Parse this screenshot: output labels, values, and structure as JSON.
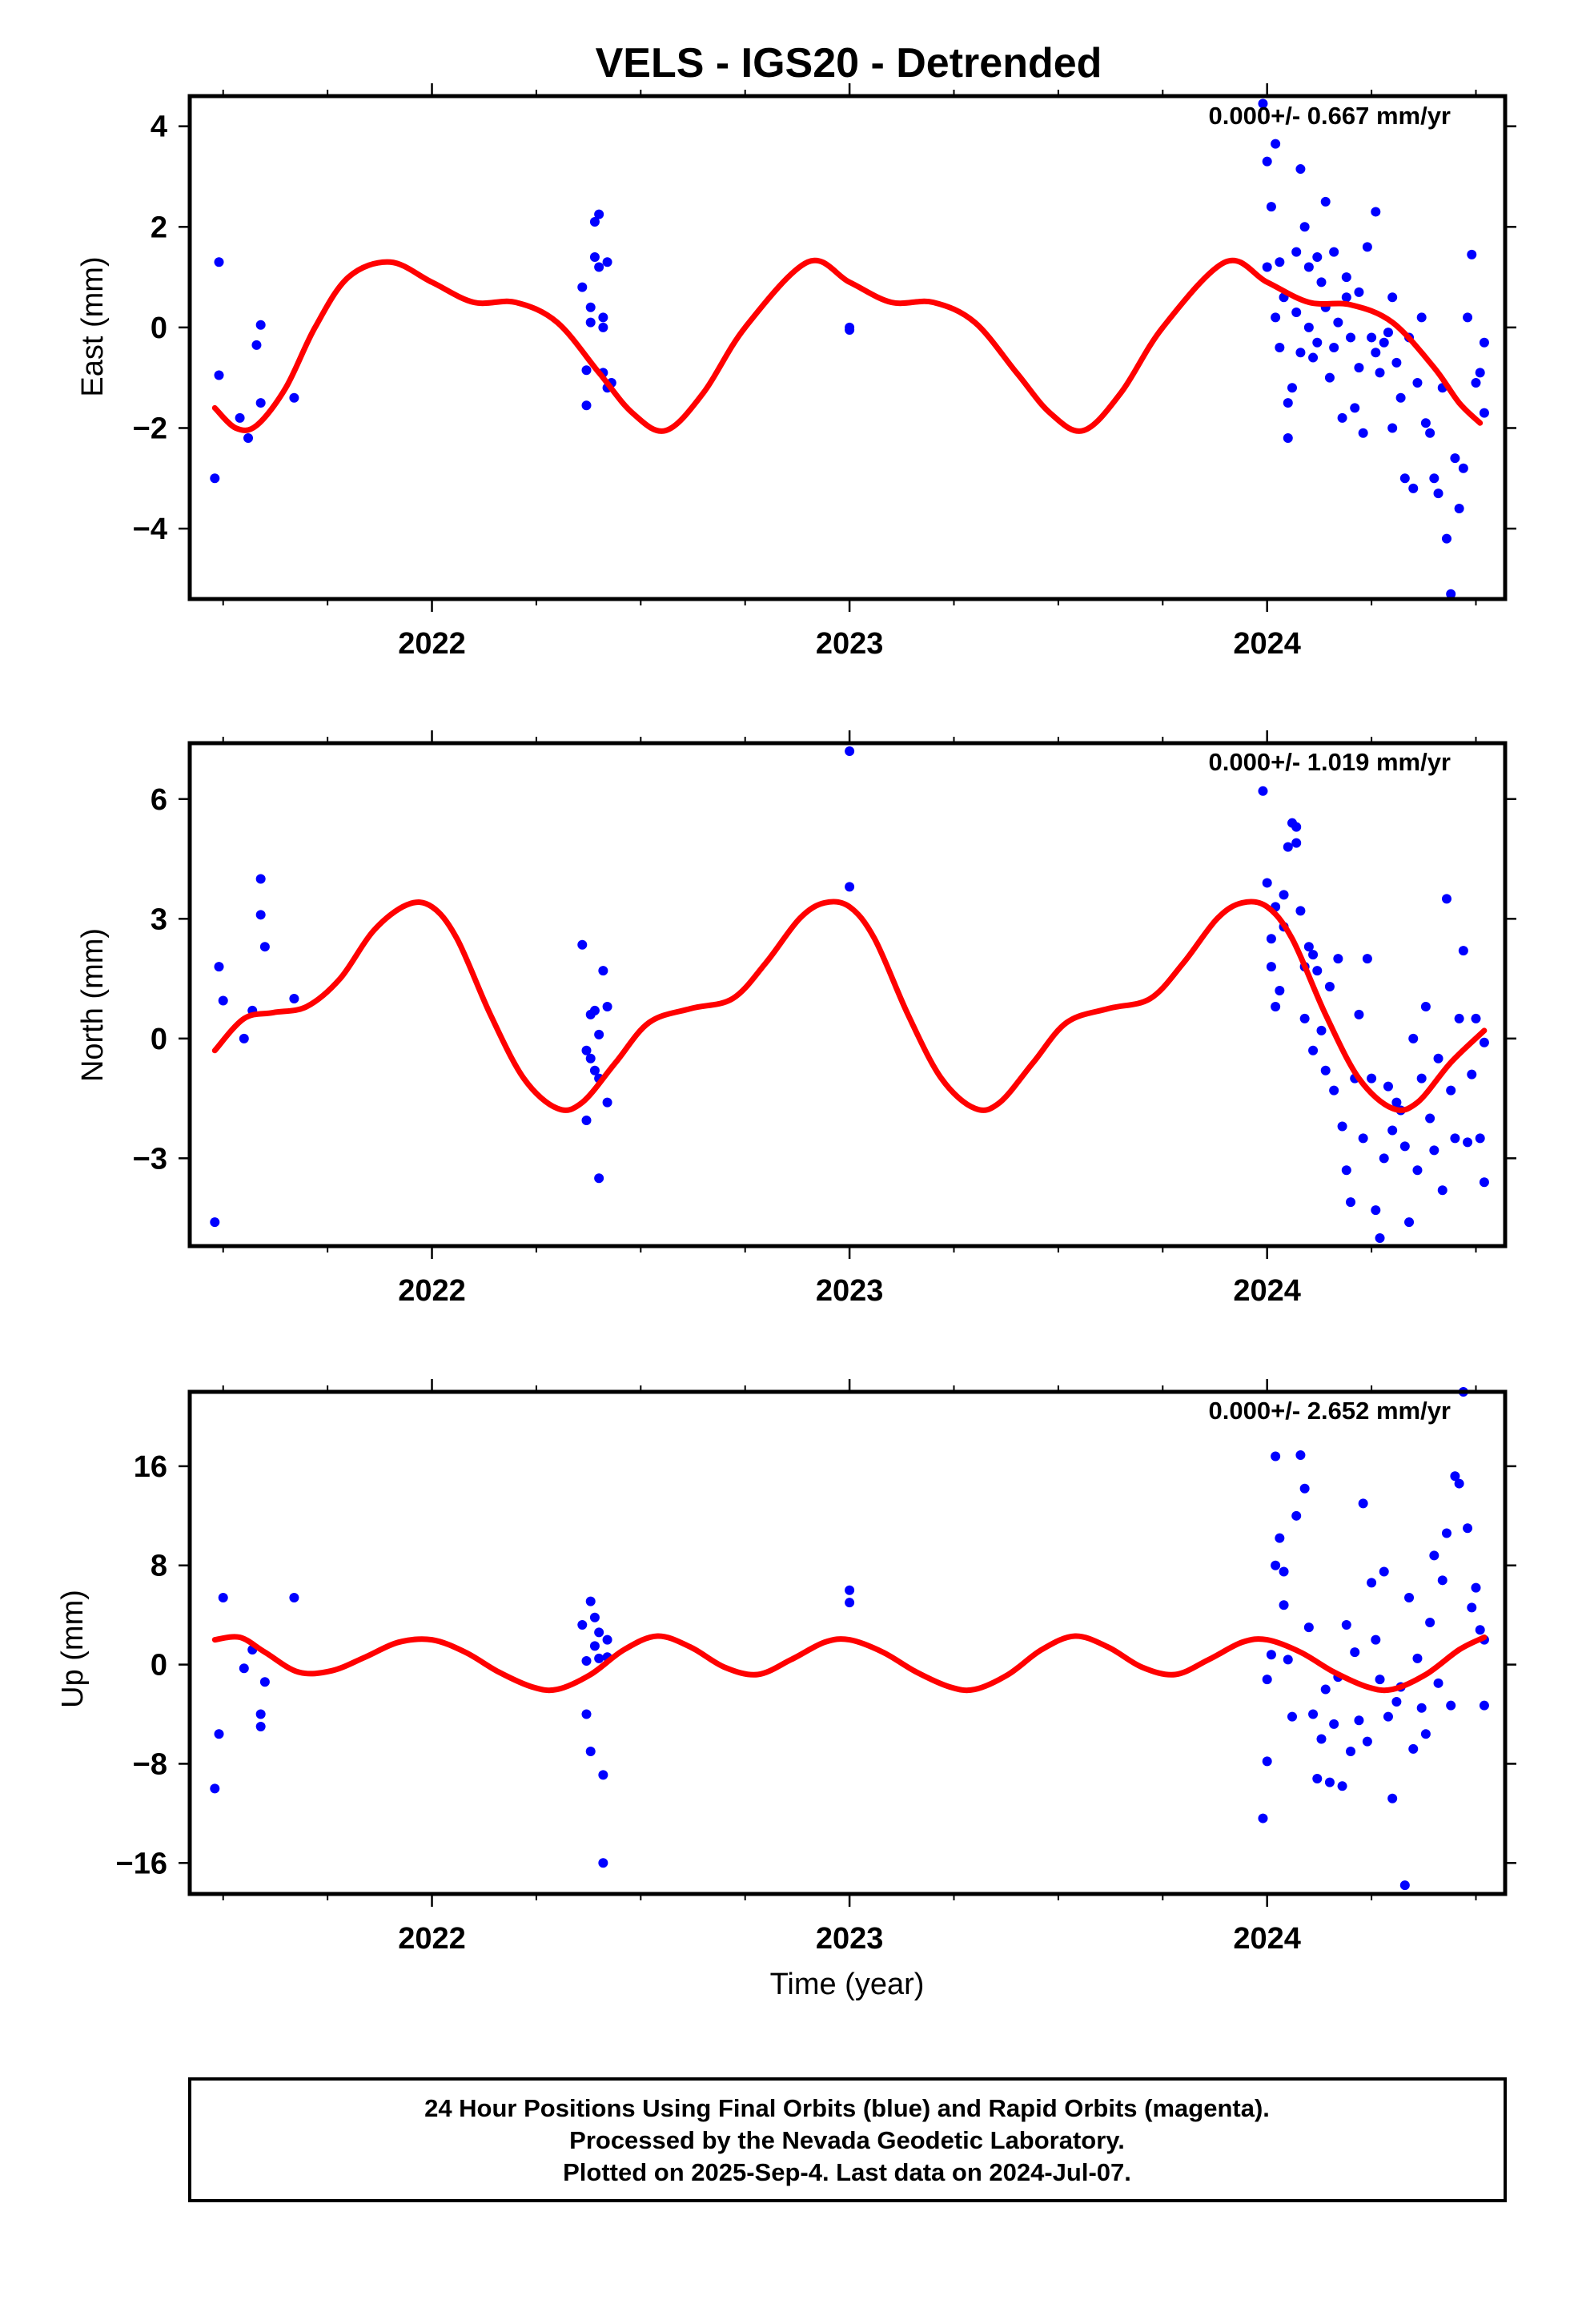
{
  "title": "VELS - IGS20 - Detrended",
  "x_axis_label": "Time (year)",
  "footer": {
    "line1": "24 Hour Positions Using Final Orbits (blue) and Rapid Orbits (magenta).",
    "line2": "Processed by the Nevada Geodetic Laboratory.",
    "line3": "Plotted on 2025-Sep-4. Last data on 2024-Jul-07."
  },
  "colors": {
    "points": "#0000ff",
    "model": "#ff0000",
    "frame": "#000000"
  },
  "chart_data": [
    {
      "type": "scatter",
      "panel": "east",
      "ylabel": "East (mm)",
      "rate_label": "0.000+/- 0.667 mm/yr",
      "xlim": [
        2021.42,
        2024.57
      ],
      "ylim": [
        -5.4,
        4.6
      ],
      "yticks": [
        4,
        2,
        0,
        -2,
        -4
      ],
      "ytick_labels": [
        "4",
        "2",
        "0",
        "−2",
        "−4"
      ],
      "xticks": [
        2022,
        2023,
        2024
      ],
      "xtick_labels": [
        "2022",
        "2023",
        "2024"
      ],
      "model": {
        "x": [
          2021.48,
          2021.53,
          2021.58,
          2021.65,
          2021.72,
          2021.8,
          2021.9,
          2022.0,
          2022.1,
          2022.2,
          2022.3,
          2022.4,
          2022.48,
          2022.56,
          2022.65,
          2022.75,
          2022.9,
          2023.0,
          2023.1,
          2023.2,
          2023.3,
          2023.4,
          2023.48,
          2023.56,
          2023.65,
          2023.75,
          2023.9,
          2024.0,
          2024.1,
          2024.2,
          2024.3,
          2024.4,
          2024.46,
          2024.51
        ],
        "y": [
          -1.6,
          -2.0,
          -1.95,
          -1.2,
          0.0,
          1.0,
          1.3,
          0.9,
          0.5,
          0.5,
          0.1,
          -0.9,
          -1.7,
          -2.05,
          -1.3,
          0.0,
          1.3,
          0.9,
          0.5,
          0.5,
          0.1,
          -0.9,
          -1.7,
          -2.05,
          -1.3,
          0.0,
          1.3,
          0.9,
          0.5,
          0.45,
          0.1,
          -0.8,
          -1.5,
          -1.9
        ]
      },
      "x": [
        2021.48,
        2021.49,
        2021.49,
        2021.54,
        2021.56,
        2021.58,
        2021.59,
        2021.59,
        2021.67,
        2022.36,
        2022.37,
        2022.37,
        2022.38,
        2022.38,
        2022.39,
        2022.39,
        2022.4,
        2022.4,
        2022.41,
        2022.41,
        2022.41,
        2022.42,
        2022.42,
        2022.43,
        2023.0,
        2023.0,
        2023.99,
        2024.0,
        2024.0,
        2024.01,
        2024.02,
        2024.02,
        2024.03,
        2024.03,
        2024.04,
        2024.05,
        2024.05,
        2024.06,
        2024.07,
        2024.07,
        2024.08,
        2024.08,
        2024.09,
        2024.1,
        2024.1,
        2024.11,
        2024.12,
        2024.12,
        2024.13,
        2024.14,
        2024.14,
        2024.15,
        2024.16,
        2024.16,
        2024.17,
        2024.18,
        2024.19,
        2024.19,
        2024.2,
        2024.21,
        2024.22,
        2024.22,
        2024.23,
        2024.24,
        2024.25,
        2024.26,
        2024.26,
        2024.27,
        2024.28,
        2024.29,
        2024.3,
        2024.3,
        2024.31,
        2024.32,
        2024.33,
        2024.34,
        2024.35,
        2024.36,
        2024.37,
        2024.38,
        2024.39,
        2024.4,
        2024.41,
        2024.42,
        2024.43,
        2024.44,
        2024.45,
        2024.46,
        2024.47,
        2024.48,
        2024.49,
        2024.5,
        2024.51,
        2024.52,
        2024.52
      ],
      "y": [
        -3.0,
        -0.95,
        1.3,
        -1.8,
        -2.2,
        -0.35,
        0.05,
        -1.5,
        -1.4,
        0.8,
        -0.85,
        -1.55,
        0.1,
        0.4,
        1.4,
        2.1,
        1.2,
        2.25,
        0.2,
        0.0,
        -0.9,
        1.3,
        -1.2,
        -1.1,
        0.0,
        -0.05,
        4.45,
        3.3,
        1.2,
        2.4,
        3.65,
        0.2,
        1.3,
        -0.4,
        0.6,
        -1.5,
        -2.2,
        -1.2,
        0.3,
        1.5,
        3.15,
        -0.5,
        2.0,
        1.2,
        0.0,
        -0.6,
        1.4,
        -0.3,
        0.9,
        0.4,
        2.5,
        -1.0,
        1.5,
        -0.4,
        0.1,
        -1.8,
        1.0,
        0.6,
        -0.2,
        -1.6,
        0.7,
        -0.8,
        -2.1,
        1.6,
        -0.2,
        -0.5,
        2.3,
        -0.9,
        -0.3,
        -0.1,
        -2.0,
        0.6,
        -0.7,
        -1.4,
        -3.0,
        -0.2,
        -3.2,
        -1.1,
        0.2,
        -1.9,
        -2.1,
        -3.0,
        -3.3,
        -1.2,
        -4.2,
        -5.3,
        -2.6,
        -3.6,
        -2.8,
        0.2,
        1.45,
        -1.1,
        -0.9,
        -1.7,
        -0.3
      ]
    },
    {
      "type": "scatter",
      "panel": "north",
      "ylabel": "North (mm)",
      "rate_label": "0.000+/- 1.019 mm/yr",
      "xlim": [
        2021.42,
        2024.57
      ],
      "ylim": [
        -5.2,
        7.4
      ],
      "yticks": [
        6,
        3,
        0,
        -3
      ],
      "ytick_labels": [
        "6",
        "3",
        "0",
        "−3"
      ],
      "xticks": [
        2022,
        2023,
        2024
      ],
      "xtick_labels": [
        "2022",
        "2023",
        "2024"
      ],
      "model": {
        "x": [
          2021.48,
          2021.55,
          2021.62,
          2021.7,
          2021.78,
          2021.86,
          2021.94,
          2022.0,
          2022.06,
          2022.14,
          2022.22,
          2022.3,
          2022.36,
          2022.44,
          2022.52,
          2022.62,
          2022.72,
          2022.8,
          2022.88,
          2022.94,
          2023.0,
          2023.06,
          2023.14,
          2023.22,
          2023.3,
          2023.36,
          2023.44,
          2023.52,
          2023.62,
          2023.72,
          2023.8,
          2023.88,
          2023.94,
          2024.0,
          2024.06,
          2024.14,
          2024.22,
          2024.3,
          2024.36,
          2024.44,
          2024.52
        ],
        "y": [
          -0.3,
          0.5,
          0.65,
          0.8,
          1.5,
          2.7,
          3.35,
          3.3,
          2.5,
          0.6,
          -1.0,
          -1.75,
          -1.6,
          -0.6,
          0.4,
          0.75,
          1.0,
          1.9,
          3.0,
          3.4,
          3.3,
          2.5,
          0.6,
          -1.0,
          -1.75,
          -1.6,
          -0.6,
          0.4,
          0.75,
          1.0,
          1.9,
          3.0,
          3.4,
          3.3,
          2.5,
          0.6,
          -1.0,
          -1.75,
          -1.6,
          -0.6,
          0.2
        ]
      },
      "x": [
        2021.48,
        2021.49,
        2021.5,
        2021.55,
        2021.57,
        2021.59,
        2021.59,
        2021.6,
        2021.67,
        2022.36,
        2022.37,
        2022.37,
        2022.38,
        2022.38,
        2022.39,
        2022.39,
        2022.4,
        2022.4,
        2022.4,
        2022.41,
        2022.42,
        2022.42,
        2023.0,
        2023.0,
        2023.99,
        2024.0,
        2024.01,
        2024.01,
        2024.02,
        2024.02,
        2024.03,
        2024.04,
        2024.04,
        2024.05,
        2024.06,
        2024.07,
        2024.07,
        2024.08,
        2024.09,
        2024.09,
        2024.1,
        2024.11,
        2024.11,
        2024.12,
        2024.13,
        2024.14,
        2024.15,
        2024.16,
        2024.17,
        2024.18,
        2024.19,
        2024.2,
        2024.21,
        2024.22,
        2024.23,
        2024.24,
        2024.25,
        2024.26,
        2024.27,
        2024.28,
        2024.29,
        2024.3,
        2024.31,
        2024.32,
        2024.33,
        2024.34,
        2024.35,
        2024.36,
        2024.37,
        2024.38,
        2024.39,
        2024.4,
        2024.41,
        2024.42,
        2024.43,
        2024.44,
        2024.45,
        2024.46,
        2024.47,
        2024.48,
        2024.49,
        2024.5,
        2024.51,
        2024.52,
        2024.52
      ],
      "y": [
        -4.6,
        1.8,
        0.95,
        0.0,
        0.7,
        4.0,
        3.1,
        2.3,
        1.0,
        2.35,
        -2.05,
        -0.3,
        0.6,
        -0.5,
        0.7,
        -0.8,
        -3.5,
        0.1,
        -1.0,
        1.7,
        0.8,
        -1.6,
        7.2,
        3.8,
        6.2,
        3.9,
        2.5,
        1.8,
        0.8,
        3.3,
        1.2,
        2.8,
        3.6,
        4.8,
        5.4,
        4.9,
        5.3,
        3.2,
        1.8,
        0.5,
        2.3,
        -0.3,
        2.1,
        1.7,
        0.2,
        -0.8,
        1.3,
        -1.3,
        2.0,
        -2.2,
        -3.3,
        -4.1,
        -1.0,
        0.6,
        -2.5,
        2.0,
        -1.0,
        -4.3,
        -5.0,
        -3.0,
        -1.2,
        -2.3,
        -1.6,
        -1.8,
        -2.7,
        -4.6,
        0.0,
        -3.3,
        -1.0,
        0.8,
        -2.0,
        -2.8,
        -0.5,
        -3.8,
        3.5,
        -1.3,
        -2.5,
        0.5,
        2.2,
        -2.6,
        -0.9,
        0.5,
        -2.5,
        -3.6,
        -0.1
      ]
    },
    {
      "type": "scatter",
      "panel": "up",
      "ylabel": "Up (mm)",
      "rate_label": "0.000+/- 2.652 mm/yr",
      "xlim": [
        2021.42,
        2024.57
      ],
      "ylim": [
        -18.5,
        22.0
      ],
      "yticks": [
        16,
        8,
        0,
        -8,
        -16
      ],
      "ytick_labels": [
        "16",
        "8",
        "0",
        "−8",
        "−16"
      ],
      "xticks": [
        2022,
        2023,
        2024
      ],
      "xtick_labels": [
        "2022",
        "2023",
        "2024"
      ],
      "model": {
        "x": [
          2021.48,
          2021.54,
          2021.6,
          2021.68,
          2021.76,
          2021.84,
          2021.92,
          2022.0,
          2022.08,
          2022.16,
          2022.24,
          2022.3,
          2022.38,
          2022.46,
          2022.54,
          2022.62,
          2022.7,
          2022.78,
          2022.86,
          2022.94,
          2023.0,
          2023.08,
          2023.16,
          2023.24,
          2023.3,
          2023.38,
          2023.46,
          2023.54,
          2023.62,
          2023.7,
          2023.78,
          2023.86,
          2023.94,
          2024.0,
          2024.08,
          2024.16,
          2024.24,
          2024.3,
          2024.38,
          2024.46,
          2024.52
        ],
        "y": [
          2.0,
          2.2,
          1.0,
          -0.6,
          -0.5,
          0.6,
          1.8,
          2.0,
          1.0,
          -0.6,
          -1.8,
          -2.0,
          -0.8,
          1.2,
          2.3,
          1.4,
          -0.2,
          -0.8,
          0.4,
          1.8,
          2.0,
          1.0,
          -0.6,
          -1.8,
          -2.0,
          -0.8,
          1.2,
          2.3,
          1.4,
          -0.2,
          -0.8,
          0.4,
          1.8,
          2.0,
          1.0,
          -0.6,
          -1.8,
          -2.0,
          -0.8,
          1.2,
          2.2
        ]
      },
      "x": [
        2021.48,
        2021.49,
        2021.5,
        2021.55,
        2021.57,
        2021.59,
        2021.59,
        2021.6,
        2021.67,
        2022.36,
        2022.37,
        2022.37,
        2022.38,
        2022.38,
        2022.39,
        2022.39,
        2022.4,
        2022.4,
        2022.41,
        2022.41,
        2022.42,
        2022.42,
        2023.0,
        2023.0,
        2023.99,
        2024.0,
        2024.0,
        2024.01,
        2024.02,
        2024.02,
        2024.03,
        2024.04,
        2024.04,
        2024.05,
        2024.06,
        2024.07,
        2024.08,
        2024.09,
        2024.1,
        2024.11,
        2024.12,
        2024.13,
        2024.14,
        2024.15,
        2024.16,
        2024.17,
        2024.18,
        2024.19,
        2024.2,
        2024.21,
        2024.22,
        2024.23,
        2024.24,
        2024.25,
        2024.26,
        2024.27,
        2024.28,
        2024.29,
        2024.3,
        2024.31,
        2024.32,
        2024.33,
        2024.34,
        2024.35,
        2024.36,
        2024.37,
        2024.38,
        2024.39,
        2024.4,
        2024.41,
        2024.42,
        2024.43,
        2024.44,
        2024.45,
        2024.46,
        2024.47,
        2024.48,
        2024.49,
        2024.5,
        2024.51,
        2024.52,
        2024.52
      ],
      "y": [
        -10.0,
        -5.6,
        5.4,
        -0.3,
        1.2,
        -4.0,
        -5.0,
        -1.4,
        5.4,
        3.2,
        0.3,
        -4.0,
        5.1,
        -7.0,
        1.5,
        3.8,
        2.6,
        0.5,
        -16.0,
        -8.9,
        2.0,
        0.6,
        6.0,
        5.0,
        -12.4,
        -7.8,
        -1.2,
        0.8,
        8.0,
        16.8,
        10.2,
        4.8,
        7.5,
        0.4,
        -4.2,
        12.0,
        16.9,
        14.2,
        3.0,
        -4.0,
        -9.2,
        -6.0,
        -2.0,
        -9.5,
        -4.8,
        -1.0,
        -9.8,
        3.2,
        -7.0,
        1.0,
        -4.5,
        13.0,
        -6.2,
        6.6,
        2.0,
        -1.2,
        7.5,
        -4.2,
        -10.8,
        -3.0,
        -1.8,
        -17.8,
        5.4,
        -6.8,
        0.5,
        -3.5,
        -5.6,
        3.4,
        8.8,
        -1.5,
        6.8,
        10.6,
        -3.3,
        15.2,
        14.6,
        22.0,
        11.0,
        4.6,
        6.2,
        2.8,
        2.0,
        -3.3
      ]
    }
  ]
}
